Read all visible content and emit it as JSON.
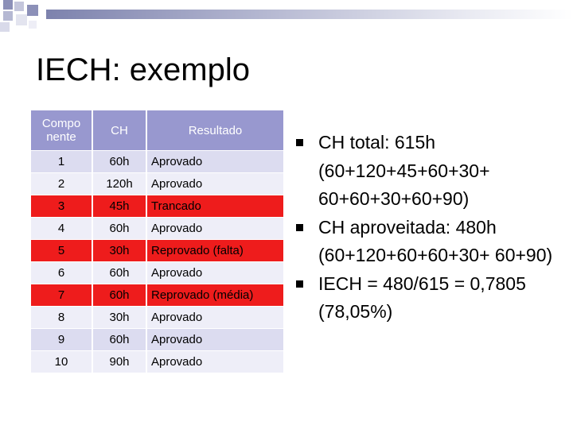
{
  "slide": {
    "title": "IECH: exemplo"
  },
  "table": {
    "headers": [
      "Compo nente",
      "CH",
      "Resultado"
    ],
    "rows": [
      {
        "componente": "1",
        "ch": "60h",
        "resultado": "Aprovado",
        "highlight": false
      },
      {
        "componente": "2",
        "ch": "120h",
        "resultado": "Aprovado",
        "highlight": false
      },
      {
        "componente": "3",
        "ch": "45h",
        "resultado": "Trancado",
        "highlight": true
      },
      {
        "componente": "4",
        "ch": "60h",
        "resultado": "Aprovado",
        "highlight": false
      },
      {
        "componente": "5",
        "ch": "30h",
        "resultado": "Reprovado (falta)",
        "highlight": true
      },
      {
        "componente": "6",
        "ch": "60h",
        "resultado": "Aprovado",
        "highlight": false
      },
      {
        "componente": "7",
        "ch": "60h",
        "resultado": "Reprovado (média)",
        "highlight": true
      },
      {
        "componente": "8",
        "ch": "30h",
        "resultado": "Aprovado",
        "highlight": false
      },
      {
        "componente": "9",
        "ch": "60h",
        "resultado": "Aprovado",
        "highlight": false
      },
      {
        "componente": "10",
        "ch": "90h",
        "resultado": "Aprovado",
        "highlight": false
      }
    ]
  },
  "bullets": [
    "CH total: 615h (60+120+45+60+30+ 60+60+30+60+90)",
    "CH aproveitada: 480h (60+120+60+60+30+ 60+90)",
    "IECH = 480/615 = 0,7805 (78,05%)"
  ],
  "colors": {
    "header_bg": "#9898cf",
    "row_odd": "#dcdcf0",
    "row_even": "#eeeef8",
    "row_highlight": "#ee1c1c",
    "accent_bar": "#7d82ad"
  }
}
